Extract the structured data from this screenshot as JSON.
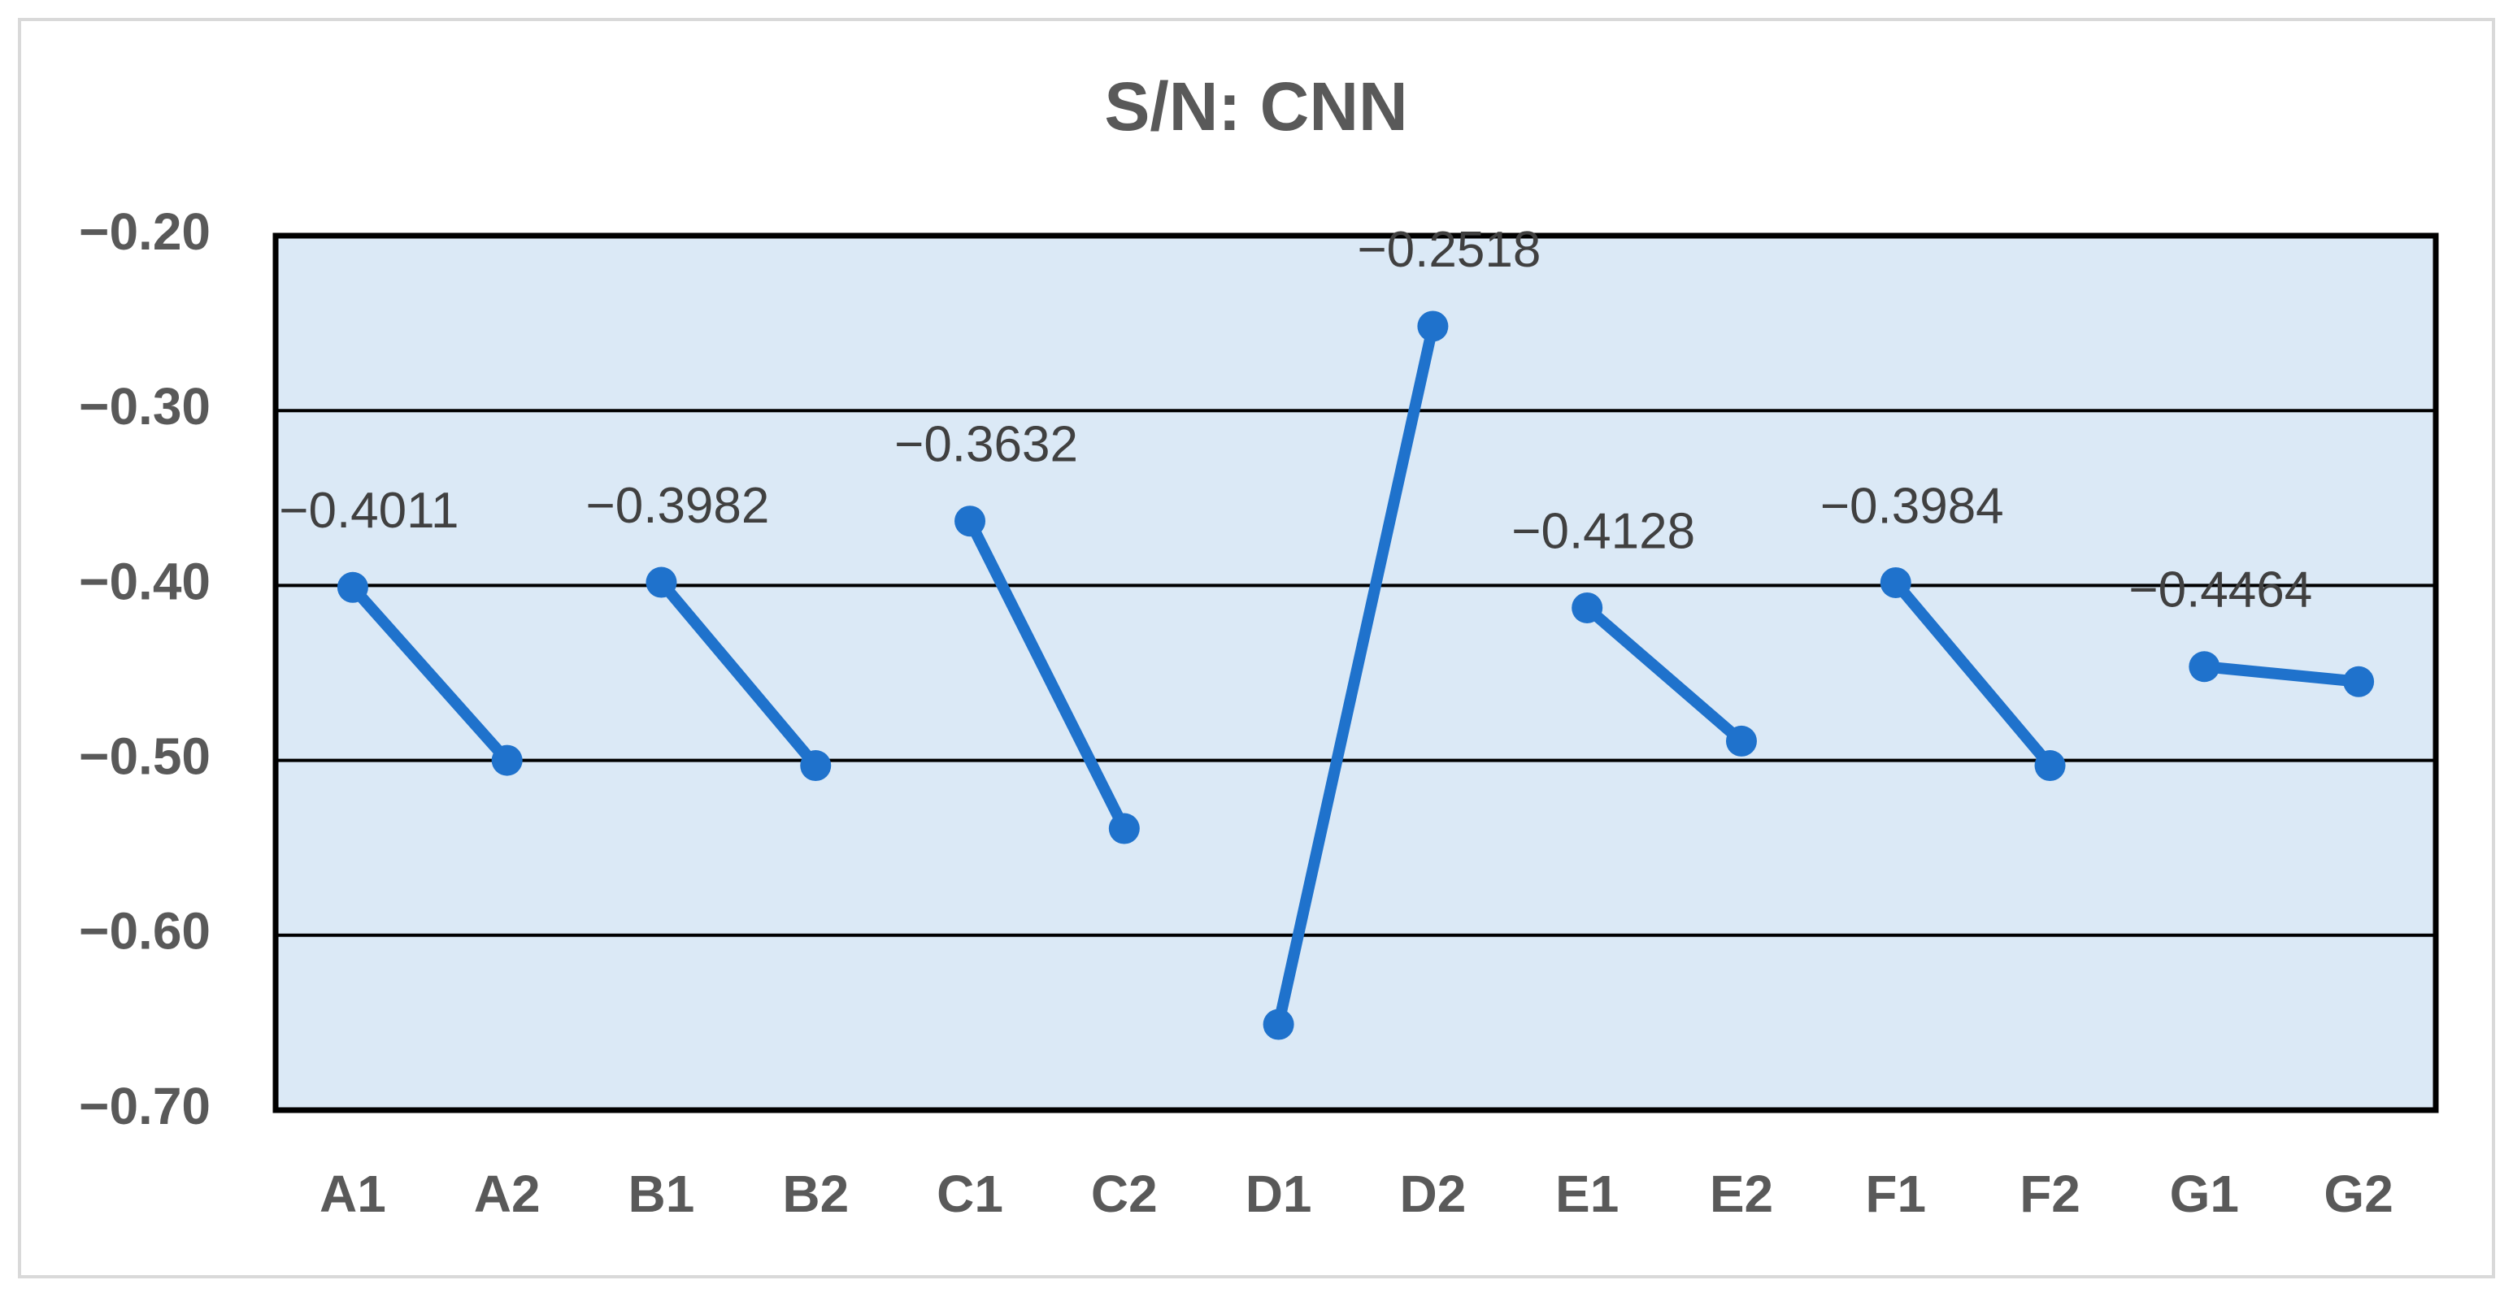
{
  "chart_data": {
    "type": "line",
    "title": "S/N: CNN",
    "categories": [
      "A1",
      "A2",
      "B1",
      "B2",
      "C1",
      "C2",
      "D1",
      "D2",
      "E1",
      "E2",
      "F1",
      "F2",
      "G1",
      "G2"
    ],
    "series": [
      {
        "color": "#1f72cc",
        "values": [
          -0.4011,
          -0.5,
          null,
          null,
          null,
          null,
          null,
          null,
          null,
          null,
          null,
          null,
          null,
          null
        ],
        "value_labels": [
          "−0.4011",
          null,
          null,
          null,
          null,
          null,
          null,
          null,
          null,
          null,
          null,
          null,
          null,
          null
        ]
      },
      {
        "color": "#1f72cc",
        "values": [
          null,
          null,
          -0.3982,
          -0.503,
          null,
          null,
          null,
          null,
          null,
          null,
          null,
          null,
          null,
          null
        ],
        "value_labels": [
          null,
          null,
          "−0.3982",
          null,
          null,
          null,
          null,
          null,
          null,
          null,
          null,
          null,
          null,
          null
        ]
      },
      {
        "color": "#1f72cc",
        "values": [
          null,
          null,
          null,
          null,
          -0.3632,
          -0.539,
          null,
          null,
          null,
          null,
          null,
          null,
          null,
          null
        ],
        "value_labels": [
          null,
          null,
          null,
          null,
          "−0.3632",
          null,
          null,
          null,
          null,
          null,
          null,
          null,
          null,
          null
        ]
      },
      {
        "color": "#1f72cc",
        "values": [
          null,
          null,
          null,
          null,
          null,
          null,
          -0.651,
          -0.2518,
          null,
          null,
          null,
          null,
          null,
          null
        ],
        "value_labels": [
          null,
          null,
          null,
          null,
          null,
          null,
          null,
          "−0.2518",
          null,
          null,
          null,
          null,
          null,
          null
        ]
      },
      {
        "color": "#1f72cc",
        "values": [
          null,
          null,
          null,
          null,
          null,
          null,
          null,
          null,
          -0.4128,
          -0.489,
          null,
          null,
          null,
          null
        ],
        "value_labels": [
          null,
          null,
          null,
          null,
          null,
          null,
          null,
          null,
          "−0.4128",
          null,
          null,
          null,
          null,
          null
        ]
      },
      {
        "color": "#1f72cc",
        "values": [
          null,
          null,
          null,
          null,
          null,
          null,
          null,
          null,
          null,
          null,
          -0.3984,
          -0.503,
          null,
          null
        ],
        "value_labels": [
          null,
          null,
          null,
          null,
          null,
          null,
          null,
          null,
          null,
          null,
          "−0.3984",
          null,
          null,
          null
        ]
      },
      {
        "color": "#1f72cc",
        "values": [
          null,
          null,
          null,
          null,
          null,
          null,
          null,
          null,
          null,
          null,
          null,
          null,
          -0.4464,
          -0.455
        ],
        "value_labels": [
          null,
          null,
          null,
          null,
          null,
          null,
          null,
          null,
          null,
          null,
          null,
          null,
          "−0.4464",
          null
        ]
      }
    ],
    "ylim": [
      -0.7,
      -0.2
    ],
    "yticks": [
      {
        "value": -0.7,
        "label": "−0.70"
      },
      {
        "value": -0.6,
        "label": "−0.60"
      },
      {
        "value": -0.5,
        "label": "−0.50"
      },
      {
        "value": -0.4,
        "label": "−0.40"
      },
      {
        "value": -0.3,
        "label": "−0.30"
      },
      {
        "value": -0.2,
        "label": "−0.20"
      }
    ],
    "grid": true
  }
}
